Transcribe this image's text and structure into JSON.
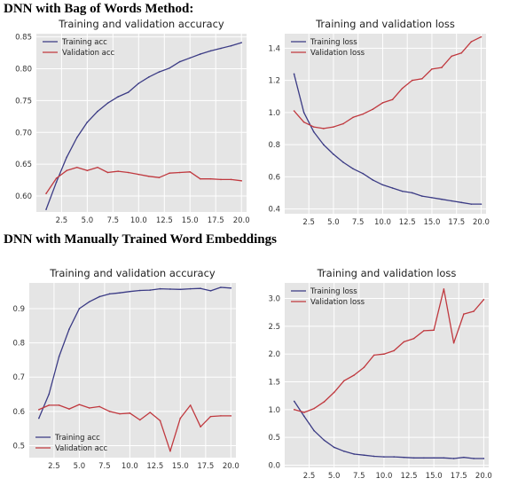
{
  "sections": [
    {
      "label": "DNN with Bag of Words Method:"
    },
    {
      "label": "DNN with Manually Trained Word Embeddings"
    }
  ],
  "colors": {
    "train": "#3b3b85",
    "validation": "#c0393f",
    "plot_background": "#e5e5e5",
    "grid": "#ffffff"
  },
  "chart_data": [
    {
      "type": "line",
      "title": "Training and validation accuracy",
      "xlabel": "",
      "ylabel": "",
      "xlim": [
        0.05,
        20.5
      ],
      "ylim": [
        0.575,
        0.855
      ],
      "xticks": [
        2.5,
        5.0,
        7.5,
        10.0,
        12.5,
        15.0,
        17.5,
        20.0
      ],
      "xtick_labels": [
        "2.5",
        "5.0",
        "7.5",
        "10.0",
        "12.5",
        "15.0",
        "17.5",
        "20.0"
      ],
      "yticks": [
        0.6,
        0.65,
        0.7,
        0.75,
        0.8,
        0.85
      ],
      "ytick_labels": [
        "0.60",
        "0.65",
        "0.70",
        "0.75",
        "0.80",
        "0.85"
      ],
      "grid": true,
      "legend_position": "top-left",
      "x": [
        1,
        2,
        3,
        4,
        5,
        6,
        7,
        8,
        9,
        10,
        11,
        12,
        13,
        14,
        15,
        16,
        17,
        18,
        19,
        20
      ],
      "series": [
        {
          "name": "Training acc",
          "color": "#3b3b85",
          "values": [
            0.579,
            0.622,
            0.661,
            0.692,
            0.716,
            0.733,
            0.746,
            0.756,
            0.763,
            0.777,
            0.787,
            0.795,
            0.801,
            0.811,
            0.817,
            0.823,
            0.828,
            0.832,
            0.836,
            0.841
          ]
        },
        {
          "name": "Validation acc",
          "color": "#c0393f",
          "values": [
            0.604,
            0.628,
            0.64,
            0.645,
            0.64,
            0.645,
            0.637,
            0.639,
            0.637,
            0.634,
            0.631,
            0.629,
            0.636,
            0.637,
            0.638,
            0.627,
            0.627,
            0.626,
            0.626,
            0.624
          ]
        }
      ]
    },
    {
      "type": "line",
      "title": "Training and validation loss",
      "xlabel": "",
      "ylabel": "",
      "xlim": [
        0.05,
        20.5
      ],
      "ylim": [
        0.37,
        1.49
      ],
      "xticks": [
        2.5,
        5.0,
        7.5,
        10.0,
        12.5,
        15.0,
        17.5,
        20.0
      ],
      "xtick_labels": [
        "2.5",
        "5.0",
        "7.5",
        "10.0",
        "12.5",
        "15.0",
        "17.5",
        "20.0"
      ],
      "yticks": [
        0.4,
        0.6,
        0.8,
        1.0,
        1.2,
        1.4
      ],
      "ytick_labels": [
        "0.4",
        "0.6",
        "0.8",
        "1.0",
        "1.2",
        "1.4"
      ],
      "grid": true,
      "legend_position": "top-left",
      "x": [
        1,
        2,
        3,
        4,
        5,
        6,
        7,
        8,
        9,
        10,
        11,
        12,
        13,
        14,
        15,
        16,
        17,
        18,
        19,
        20
      ],
      "series": [
        {
          "name": "Training loss",
          "color": "#3b3b85",
          "values": [
            1.24,
            1.0,
            0.88,
            0.8,
            0.74,
            0.69,
            0.65,
            0.62,
            0.58,
            0.55,
            0.53,
            0.51,
            0.5,
            0.48,
            0.47,
            0.46,
            0.45,
            0.44,
            0.43,
            0.43
          ]
        },
        {
          "name": "Validation loss",
          "color": "#c0393f",
          "values": [
            1.01,
            0.94,
            0.91,
            0.9,
            0.91,
            0.93,
            0.97,
            0.99,
            1.02,
            1.06,
            1.08,
            1.15,
            1.2,
            1.21,
            1.27,
            1.28,
            1.35,
            1.37,
            1.44,
            1.47
          ]
        }
      ]
    },
    {
      "type": "line",
      "title": "Training and validation accuracy",
      "xlabel": "",
      "ylabel": "",
      "xlim": [
        0.05,
        20.5
      ],
      "ylim": [
        0.465,
        0.975
      ],
      "xticks": [
        2.5,
        5.0,
        7.5,
        10.0,
        12.5,
        15.0,
        17.5,
        20.0
      ],
      "xtick_labels": [
        "2.5",
        "5.0",
        "7.5",
        "10.0",
        "12.5",
        "15.0",
        "17.5",
        "20.0"
      ],
      "yticks": [
        0.5,
        0.6,
        0.7,
        0.8,
        0.9
      ],
      "ytick_labels": [
        "0.5",
        "0.6",
        "0.7",
        "0.8",
        "0.9"
      ],
      "grid": true,
      "legend_position": "bottom-left",
      "x": [
        1,
        2,
        3,
        4,
        5,
        6,
        7,
        8,
        9,
        10,
        11,
        12,
        13,
        14,
        15,
        16,
        17,
        18,
        19,
        20
      ],
      "series": [
        {
          "name": "Training acc",
          "color": "#3b3b85",
          "values": [
            0.58,
            0.65,
            0.76,
            0.84,
            0.9,
            0.92,
            0.935,
            0.943,
            0.946,
            0.95,
            0.953,
            0.954,
            0.958,
            0.957,
            0.956,
            0.958,
            0.959,
            0.952,
            0.962,
            0.96
          ]
        },
        {
          "name": "Validation acc",
          "color": "#c0393f",
          "values": [
            0.605,
            0.618,
            0.618,
            0.607,
            0.62,
            0.61,
            0.614,
            0.6,
            0.593,
            0.595,
            0.575,
            0.597,
            0.573,
            0.484,
            0.58,
            0.618,
            0.555,
            0.585,
            0.587,
            0.587
          ]
        }
      ]
    },
    {
      "type": "line",
      "title": "Training and validation loss",
      "xlabel": "",
      "ylabel": "",
      "xlim": [
        0.05,
        20.5
      ],
      "ylim": [
        -0.04,
        3.28
      ],
      "xticks": [
        2.5,
        5.0,
        7.5,
        10.0,
        12.5,
        15.0,
        17.5,
        20.0
      ],
      "xtick_labels": [
        "2.5",
        "5.0",
        "7.5",
        "10.0",
        "12.5",
        "15.0",
        "17.5",
        "20.0"
      ],
      "yticks": [
        0.0,
        0.5,
        1.0,
        1.5,
        2.0,
        2.5,
        3.0
      ],
      "ytick_labels": [
        "0.0",
        "0.5",
        "1.0",
        "1.5",
        "2.0",
        "2.5",
        "3.0"
      ],
      "grid": true,
      "legend_position": "top-left",
      "x": [
        1,
        2,
        3,
        4,
        5,
        6,
        7,
        8,
        9,
        10,
        11,
        12,
        13,
        14,
        15,
        16,
        17,
        18,
        19,
        20
      ],
      "series": [
        {
          "name": "Training loss",
          "color": "#3b3b85",
          "values": [
            1.15,
            0.88,
            0.62,
            0.45,
            0.32,
            0.25,
            0.2,
            0.18,
            0.16,
            0.15,
            0.15,
            0.14,
            0.13,
            0.13,
            0.13,
            0.13,
            0.12,
            0.14,
            0.12,
            0.12
          ]
        },
        {
          "name": "Validation loss",
          "color": "#c0393f",
          "values": [
            1.0,
            0.95,
            1.02,
            1.14,
            1.31,
            1.52,
            1.62,
            1.76,
            1.98,
            2.0,
            2.06,
            2.22,
            2.28,
            2.42,
            2.43,
            3.17,
            2.2,
            2.72,
            2.77,
            2.98
          ]
        }
      ]
    }
  ]
}
